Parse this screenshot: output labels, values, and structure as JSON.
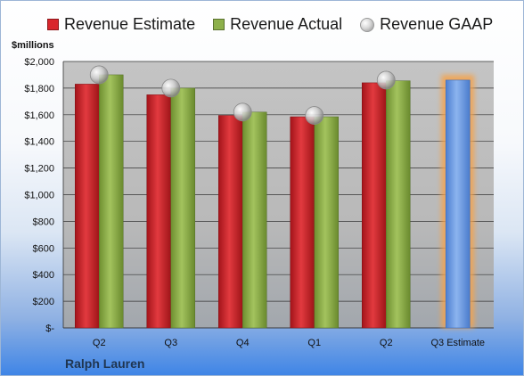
{
  "legend": {
    "estimate": "Revenue Estimate",
    "actual": "Revenue Actual",
    "gaap": "Revenue GAAP"
  },
  "unit_label": "$millions",
  "company": "Ralph Lauren",
  "colors": {
    "estimate": "#d9262c",
    "actual": "#8db04a",
    "projection": "#6f9be0",
    "projection_glow": "#f5a34b",
    "plot_bg": "#bdbdbd"
  },
  "chart_data": {
    "type": "bar",
    "categories": [
      "Q2",
      "Q3",
      "Q4",
      "Q1",
      "Q2",
      "Q3 Estimate"
    ],
    "series": [
      {
        "name": "Revenue Estimate",
        "values": [
          1830,
          1750,
          1595,
          1585,
          1840,
          null
        ]
      },
      {
        "name": "Revenue Actual",
        "values": [
          1900,
          1800,
          1620,
          1585,
          1855,
          1860
        ]
      },
      {
        "name": "Revenue GAAP",
        "values": [
          1900,
          1800,
          1620,
          1595,
          1860,
          null
        ]
      }
    ],
    "projected_category": "Q3 Estimate",
    "ylabel": "$millions",
    "ylim": [
      0,
      2000
    ],
    "yticks": [
      0,
      200,
      400,
      600,
      800,
      1000,
      1200,
      1400,
      1600,
      1800,
      2000
    ],
    "ytick_labels": [
      "$-",
      "$200",
      "$400",
      "$600",
      "$800",
      "$1,000",
      "$1,200",
      "$1,400",
      "$1,600",
      "$1,800",
      "$2,000"
    ],
    "grid": true,
    "legend_position": "top"
  }
}
